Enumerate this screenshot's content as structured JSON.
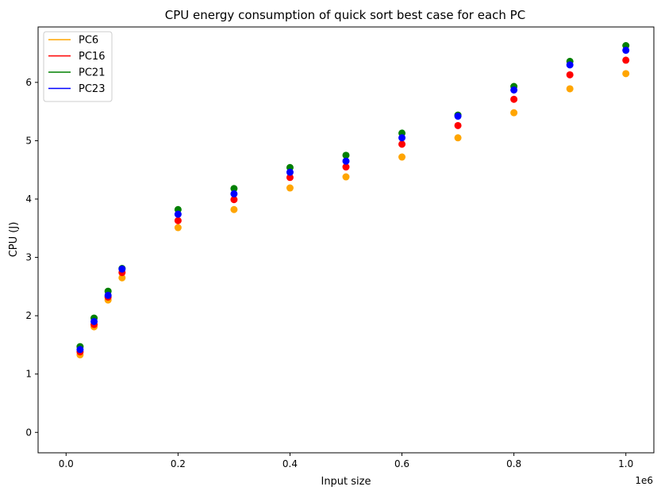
{
  "chart_data": {
    "type": "scatter",
    "title": "CPU energy consumption of quick sort best case for each PC",
    "xlabel": "Input size",
    "ylabel": "CPU (J)",
    "x_offset_label": "1e6",
    "xlim": [
      -0.05,
      1.05
    ],
    "ylim": [
      -0.35,
      6.95
    ],
    "x_ticks": [
      0.0,
      0.2,
      0.4,
      0.6,
      0.8,
      1.0
    ],
    "x_tick_labels": [
      "0.0",
      "0.2",
      "0.4",
      "0.6",
      "0.8",
      "1.0"
    ],
    "y_ticks": [
      0,
      1,
      2,
      3,
      4,
      5,
      6
    ],
    "y_tick_labels": [
      "0",
      "1",
      "2",
      "3",
      "4",
      "5",
      "6"
    ],
    "grid": false,
    "legend_position": "top-left",
    "x": [
      0.025,
      0.05,
      0.075,
      0.1,
      0.2,
      0.3,
      0.4,
      0.5,
      0.6,
      0.7,
      0.8,
      0.9,
      1.0
    ],
    "series": [
      {
        "name": "PC6",
        "color": "#ffa500",
        "values": [
          1.33,
          1.81,
          2.27,
          2.65,
          3.51,
          3.82,
          4.19,
          4.38,
          4.72,
          5.05,
          5.48,
          5.89,
          6.15
        ]
      },
      {
        "name": "PC16",
        "color": "#ff0000",
        "values": [
          1.38,
          1.85,
          2.32,
          2.74,
          3.63,
          3.99,
          4.37,
          4.55,
          4.94,
          5.26,
          5.71,
          6.13,
          6.38
        ]
      },
      {
        "name": "PC21",
        "color": "#008000",
        "values": [
          1.47,
          1.96,
          2.42,
          2.81,
          3.82,
          4.18,
          4.54,
          4.75,
          5.13,
          5.44,
          5.93,
          6.36,
          6.63
        ]
      },
      {
        "name": "PC23",
        "color": "#0000ff",
        "values": [
          1.42,
          1.9,
          2.35,
          2.8,
          3.74,
          4.09,
          4.46,
          4.65,
          5.05,
          5.42,
          5.87,
          6.3,
          6.55
        ]
      }
    ]
  }
}
